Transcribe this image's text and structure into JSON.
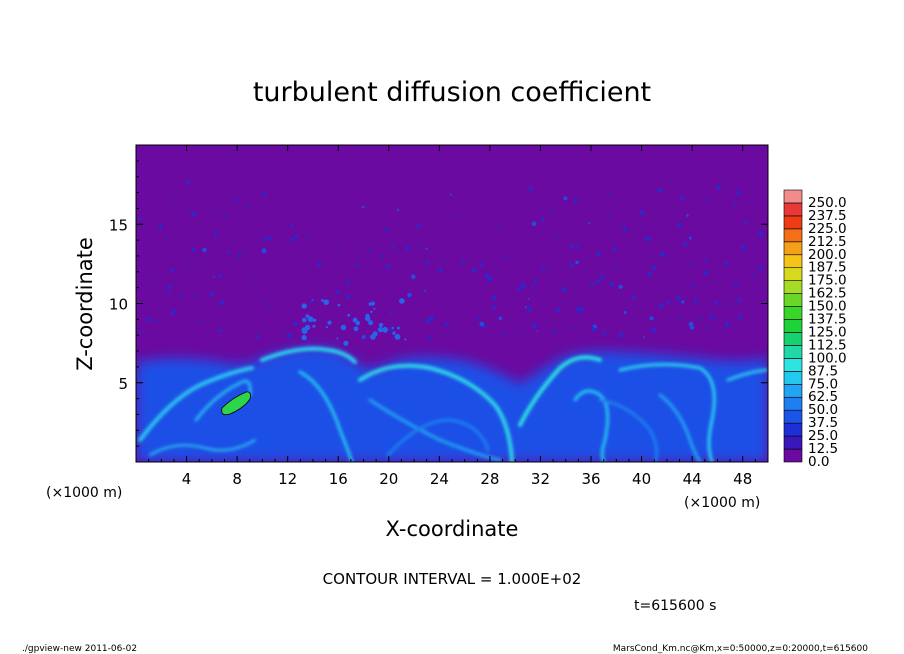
{
  "chart_data": {
    "type": "heatmap",
    "title": "turbulent diffusion coefficient",
    "xlabel": "X-coordinate",
    "ylabel": "Z-coordinate",
    "x_unit": "(×1000 m)",
    "y_unit": "(×1000 m)",
    "xlim": [
      0,
      50
    ],
    "ylim": [
      0,
      20
    ],
    "x_ticks": [
      4,
      8,
      12,
      16,
      20,
      24,
      28,
      32,
      36,
      40,
      44,
      48
    ],
    "y_ticks": [
      5,
      10,
      15
    ],
    "colorbar_levels": [
      "0.0",
      "12.5",
      "25.0",
      "37.5",
      "50.0",
      "62.5",
      "75.0",
      "87.5",
      "100.0",
      "112.5",
      "125.0",
      "137.5",
      "150.0",
      "162.5",
      "175.0",
      "187.5",
      "200.0",
      "212.5",
      "225.0",
      "237.5",
      "250.0"
    ],
    "colorbar_colors": [
      "#6a0aa0",
      "#3a17b8",
      "#1e2fd6",
      "#1b55e8",
      "#1f7ff0",
      "#21a5f2",
      "#25c8ee",
      "#2ee3e0",
      "#20d8a8",
      "#18d070",
      "#1ed23a",
      "#38d628",
      "#6ad628",
      "#a6dc26",
      "#d8d81e",
      "#f4c418",
      "#f4a018",
      "#f47018",
      "#f03c14",
      "#e8383a",
      "#f08c8c"
    ],
    "contour_interval_text": "CONTOUR INTERVAL = 1.000E+02",
    "time_text": "t=615600 s",
    "footer_left": "./gpview-new  2011-06-02",
    "footer_right": "MarsCond_Km.nc@Km,x=0:50000,z=0:20000,t=615600"
  }
}
